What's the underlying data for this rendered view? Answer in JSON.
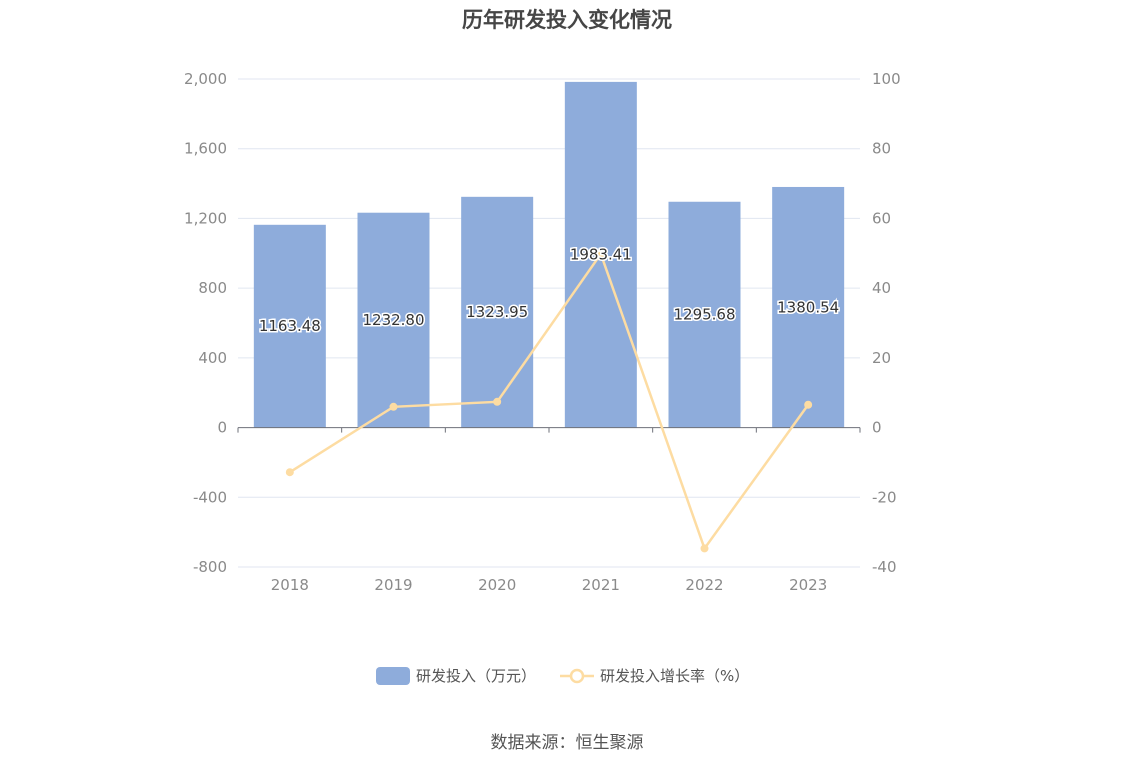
{
  "chart_data": {
    "type": "bar+line",
    "title": "历年研发投入变化情况",
    "categories": [
      "2018",
      "2019",
      "2020",
      "2021",
      "2022",
      "2023"
    ],
    "series": [
      {
        "name": "研发投入（万元）",
        "type": "bar",
        "axis": "left",
        "values": [
          1163.48,
          1232.8,
          1323.95,
          1983.41,
          1295.68,
          1380.54
        ],
        "labels": [
          "1163.48",
          "1232.80",
          "1323.95",
          "1983.41",
          "1295.68",
          "1380.54"
        ],
        "color": "#8eacdb"
      },
      {
        "name": "研发投入增长率（%）",
        "type": "line",
        "axis": "right",
        "values": [
          -12.8,
          5.96,
          7.39,
          49.81,
          -34.67,
          6.55
        ],
        "color": "#fddca2"
      }
    ],
    "y_left": {
      "min": -800,
      "max": 2000,
      "ticks": [
        -800,
        -400,
        0,
        400,
        800,
        1200,
        1600,
        2000
      ],
      "tick_labels": [
        "-800",
        "-400",
        "0",
        "400",
        "800",
        "1,200",
        "1,600",
        "2,000"
      ]
    },
    "y_right": {
      "min": -40,
      "max": 100,
      "ticks": [
        -40,
        -20,
        0,
        20,
        40,
        60,
        80,
        100
      ],
      "tick_labels": [
        "-40",
        "-20",
        "0",
        "20",
        "40",
        "60",
        "80",
        "100"
      ]
    },
    "grid": true,
    "legend_position": "bottom-center"
  },
  "source": "数据来源：恒生聚源"
}
